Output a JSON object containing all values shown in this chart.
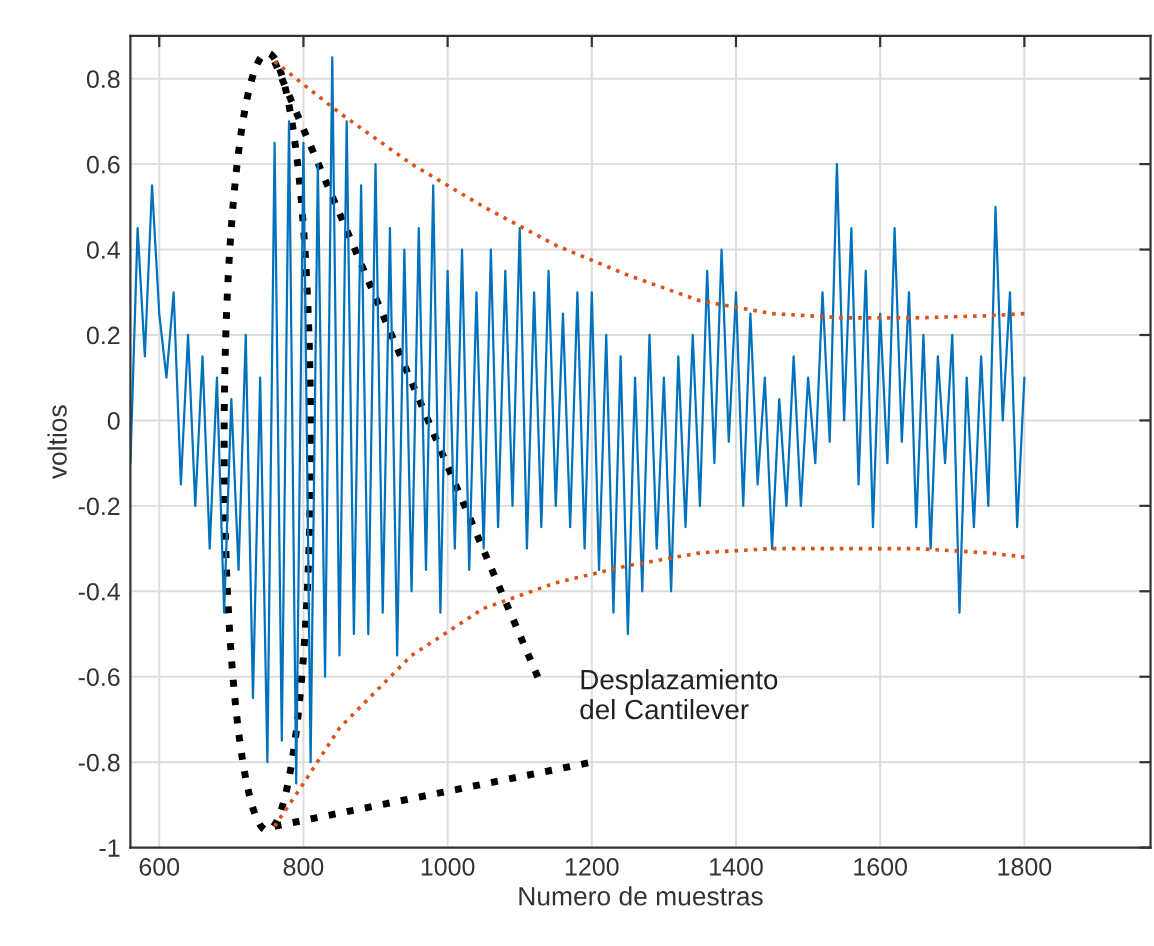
{
  "chart_data": {
    "type": "line",
    "xlabel": "Numero de muestras",
    "ylabel": "voltios",
    "xlim": [
      560,
      1975
    ],
    "ylim": [
      -1,
      0.9
    ],
    "xticks": [
      600,
      800,
      1000,
      1200,
      1400,
      1600,
      1800
    ],
    "yticks": [
      -1,
      -0.8,
      -0.6,
      -0.4,
      -0.2,
      0,
      0.2,
      0.4,
      0.6,
      0.8
    ],
    "grid": true,
    "annotations": [
      "Desplazamiento\ndel Cantilever"
    ],
    "series": [
      {
        "color": "#0072bd",
        "line_style": "solid",
        "x": [
          560,
          570,
          580,
          590,
          600,
          610,
          620,
          630,
          640,
          650,
          660,
          670,
          680,
          690,
          700,
          710,
          720,
          730,
          740,
          750,
          760,
          770,
          780,
          790,
          800,
          810,
          820,
          830,
          840,
          850,
          860,
          870,
          880,
          890,
          900,
          910,
          920,
          930,
          940,
          950,
          960,
          970,
          980,
          990,
          1000,
          1010,
          1020,
          1030,
          1040,
          1050,
          1060,
          1070,
          1080,
          1090,
          1100,
          1110,
          1120,
          1130,
          1140,
          1150,
          1160,
          1170,
          1180,
          1190,
          1200,
          1210,
          1220,
          1230,
          1240,
          1250,
          1260,
          1270,
          1280,
          1290,
          1300,
          1310,
          1320,
          1330,
          1340,
          1350,
          1360,
          1370,
          1380,
          1390,
          1400,
          1410,
          1420,
          1430,
          1440,
          1450,
          1460,
          1470,
          1480,
          1490,
          1500,
          1510,
          1520,
          1530,
          1540,
          1550,
          1560,
          1570,
          1580,
          1590,
          1600,
          1610,
          1620,
          1630,
          1640,
          1650,
          1660,
          1670,
          1680,
          1690,
          1700,
          1710,
          1720,
          1730,
          1740,
          1750,
          1760,
          1770,
          1780,
          1790,
          1800
        ],
        "values": [
          -0.1,
          0.45,
          0.15,
          0.55,
          0.25,
          0.1,
          0.3,
          -0.15,
          0.2,
          -0.2,
          0.15,
          -0.3,
          0.1,
          -0.45,
          0.05,
          -0.35,
          0.2,
          -0.65,
          0.1,
          -0.8,
          0.65,
          -0.75,
          0.7,
          -0.85,
          0.65,
          -0.8,
          0.6,
          -0.6,
          0.85,
          -0.55,
          0.7,
          -0.5,
          0.55,
          -0.5,
          0.6,
          -0.45,
          0.45,
          -0.55,
          0.4,
          -0.4,
          0.45,
          -0.35,
          0.55,
          -0.45,
          0.35,
          -0.3,
          0.4,
          -0.35,
          0.3,
          -0.3,
          0.4,
          -0.25,
          0.35,
          -0.2,
          0.45,
          -0.3,
          0.3,
          -0.25,
          0.35,
          -0.2,
          0.25,
          -0.25,
          0.3,
          -0.3,
          0.3,
          -0.35,
          0.2,
          -0.45,
          0.15,
          -0.5,
          0.1,
          -0.4,
          0.2,
          -0.3,
          0.1,
          -0.4,
          0.15,
          -0.25,
          0.2,
          -0.2,
          0.35,
          -0.1,
          0.4,
          -0.05,
          0.3,
          -0.2,
          0.25,
          -0.15,
          0.1,
          -0.3,
          0.05,
          -0.2,
          0.15,
          -0.2,
          0.1,
          -0.1,
          0.3,
          -0.05,
          0.6,
          0.0,
          0.45,
          -0.15,
          0.35,
          -0.25,
          0.25,
          -0.1,
          0.45,
          -0.05,
          0.3,
          -0.25,
          0.2,
          -0.3,
          0.15,
          -0.1,
          0.2,
          -0.45,
          0.1,
          -0.25,
          0.15,
          -0.2,
          0.5,
          0.0,
          0.3,
          -0.25,
          0.1
        ]
      },
      {
        "color": "#d95319",
        "line_style": "dotted",
        "x": [
          760,
          850,
          950,
          1050,
          1150,
          1250,
          1350,
          1450,
          1550,
          1650,
          1750,
          1800
        ],
        "values": [
          0.84,
          0.72,
          0.6,
          0.5,
          0.41,
          0.34,
          0.28,
          0.25,
          0.24,
          0.24,
          0.245,
          0.25
        ]
      },
      {
        "color": "#d95319",
        "line_style": "dotted",
        "x": [
          760,
          800,
          850,
          950,
          1050,
          1150,
          1250,
          1350,
          1450,
          1550,
          1650,
          1750,
          1800
        ],
        "values": [
          -0.95,
          -0.85,
          -0.72,
          -0.55,
          -0.44,
          -0.38,
          -0.34,
          -0.31,
          -0.3,
          -0.3,
          -0.3,
          -0.31,
          -0.32
        ]
      }
    ]
  }
}
